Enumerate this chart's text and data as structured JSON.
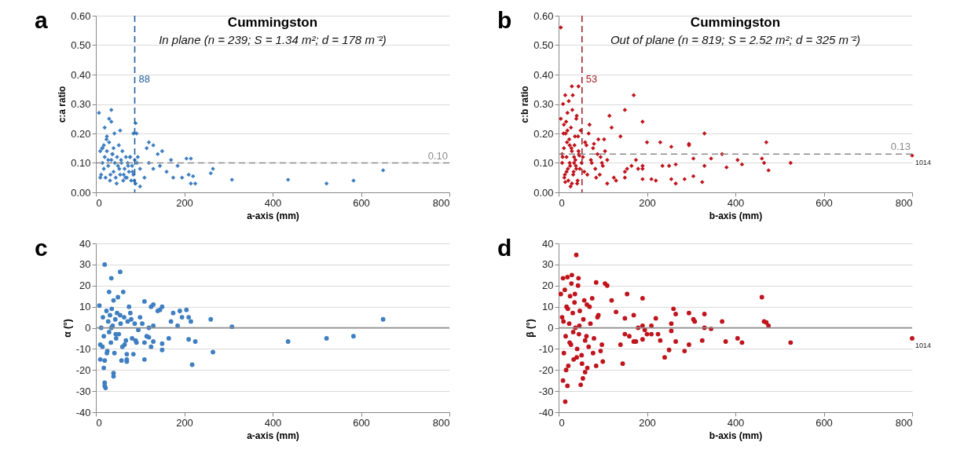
{
  "chart_data": [
    {
      "type": "scatter",
      "title": "Cummingston",
      "subtitle": "In plane (n = 239; S = 1.34 m²; d = 178 m⁻²)",
      "xlabel": "a-axis (mm)",
      "ylabel": "c:a ratio",
      "marker": "diamond",
      "grid": "y",
      "xlim": [
        0,
        800
      ],
      "xticks": [
        0,
        200,
        400,
        600,
        800
      ],
      "ylim": [
        0,
        0.6
      ],
      "yticks": [
        {
          "value": 0,
          "label": "0.00"
        },
        {
          "value": 0.1,
          "label": "0.10"
        },
        {
          "value": 0.2,
          "label": "0.20"
        },
        {
          "value": 0.3,
          "label": "0.30"
        },
        {
          "value": 0.4,
          "label": "0.40"
        },
        {
          "value": 0.5,
          "label": "0.50"
        },
        {
          "value": 0.6,
          "label": "0.60"
        }
      ],
      "ref_lines": [
        {
          "axis": "x",
          "value": 88,
          "label": "88",
          "color": "#1f5f9c",
          "line_style": "dashed"
        },
        {
          "axis": "y",
          "value": 0.1,
          "label": "0.10",
          "color": "#8c8c8c",
          "line_style": "dashed"
        }
      ],
      "annotations": [
        "a"
      ],
      "series": [
        {
          "color": "#3f7fc1",
          "x": [
            7,
            35,
            30,
            35,
            20,
            55,
            90,
            85,
            92,
            95,
            25,
            15,
            40,
            120,
            130,
            115,
            150,
            140,
            170,
            205,
            215,
            120,
            145,
            185,
            100,
            160,
            110,
            130,
            175,
            195,
            210,
            215,
            225,
            220,
            100,
            260,
            265,
            308,
            435,
            522,
            583,
            650,
            10,
            12,
            15,
            18,
            20,
            22,
            25,
            28,
            30,
            32,
            35,
            38,
            40,
            42,
            45,
            48,
            50,
            52,
            55,
            58,
            60,
            62,
            65,
            68,
            70,
            72,
            75,
            78,
            80,
            82,
            85,
            88,
            90,
            10,
            14,
            18,
            24,
            28,
            33,
            37,
            43,
            47,
            53,
            57,
            63,
            67,
            73,
            77,
            83,
            87,
            93
          ],
          "values": [
            0.27,
            0.28,
            0.25,
            0.24,
            0.22,
            0.21,
            0.235,
            0.2,
            0.2,
            0.12,
            0.19,
            0.15,
            0.15,
            0.17,
            0.16,
            0.15,
            0.14,
            0.13,
            0.11,
            0.115,
            0.115,
            0.1,
            0.09,
            0.09,
            0.08,
            0.07,
            0.05,
            0.08,
            0.05,
            0.05,
            0.06,
            0.03,
            0.03,
            0.055,
            0.02,
            0.065,
            0.08,
            0.043,
            0.043,
            0.03,
            0.04,
            0.075,
            0.14,
            0.06,
            0.1,
            0.16,
            0.12,
            0.05,
            0.14,
            0.09,
            0.17,
            0.04,
            0.11,
            0.13,
            0.07,
            0.2,
            0.05,
            0.12,
            0.09,
            0.16,
            0.06,
            0.1,
            0.14,
            0.04,
            0.08,
            0.12,
            0.05,
            0.1,
            0.07,
            0.12,
            0.04,
            0.09,
            0.06,
            0.11,
            0.03,
            0.05,
            0.15,
            0.08,
            0.18,
            0.11,
            0.06,
            0.13,
            0.1,
            0.03,
            0.08,
            0.11,
            0.06,
            0.05,
            0.09,
            0.12,
            0.07,
            0.04,
            0.1
          ]
        }
      ]
    },
    {
      "type": "scatter",
      "title": "Cummingston",
      "subtitle": "Out of plane (n = 819; S = 2.52 m²; d = 325 m⁻²)",
      "xlabel": "b-axis (mm)",
      "ylabel": "c:b ratio",
      "marker": "diamond",
      "grid": "y",
      "xlim": [
        0,
        800
      ],
      "xticks": [
        0,
        200,
        400,
        600,
        800
      ],
      "ylim": [
        0,
        0.6
      ],
      "yticks": [
        {
          "value": 0,
          "label": "0.00"
        },
        {
          "value": 0.1,
          "label": "0.10"
        },
        {
          "value": 0.2,
          "label": "0.20"
        },
        {
          "value": 0.3,
          "label": "0.30"
        },
        {
          "value": 0.4,
          "label": "0.40"
        },
        {
          "value": 0.5,
          "label": "0.50"
        },
        {
          "value": 0.6,
          "label": "0.60"
        }
      ],
      "ref_lines": [
        {
          "axis": "x",
          "value": 53,
          "label": "53",
          "color": "#a3242b",
          "line_style": "dashed"
        },
        {
          "axis": "y",
          "value": 0.13,
          "label": "0.13",
          "color": "#8c8c8c",
          "line_style": "dashed"
        }
      ],
      "annotations": [
        "b",
        {
          "text": "1014",
          "x": 800,
          "y": 0.125
        }
      ],
      "series": [
        {
          "color": "#c0141c",
          "x": [
            5,
            30,
            45,
            15,
            170,
            150,
            190,
            330,
            470,
            200,
            230,
            255,
            295,
            295,
            140,
            115,
            120,
            370,
            345,
            305,
            405,
            415,
            465,
            460,
            475,
            525,
            380,
            330,
            325,
            305,
            285,
            265,
            265,
            255,
            250,
            235,
            220,
            210,
            190,
            190,
            190,
            180,
            175,
            165,
            155,
            150,
            150,
            130,
            125,
            110,
            800,
            5,
            8,
            10,
            12,
            14,
            16,
            18,
            20,
            22,
            24,
            26,
            28,
            30,
            32,
            34,
            36,
            38,
            40,
            42,
            44,
            46,
            48,
            50,
            55,
            60,
            65,
            70,
            75,
            80,
            85,
            90,
            95,
            100,
            105,
            110,
            8,
            11,
            13,
            17,
            19,
            21,
            23,
            25,
            27,
            29,
            31,
            33,
            35,
            37,
            39,
            41,
            43,
            47,
            52,
            58,
            63,
            68,
            73,
            78,
            83,
            88,
            93,
            98,
            103,
            9,
            15,
            20,
            25,
            30,
            35,
            40,
            45,
            12,
            18
          ],
          "values": [
            0.56,
            0.36,
            0.36,
            0.33,
            0.33,
            0.28,
            0.24,
            0.2,
            0.17,
            0.17,
            0.17,
            0.155,
            0.16,
            0.165,
            0.19,
            0.26,
            0.22,
            0.13,
            0.115,
            0.115,
            0.11,
            0.095,
            0.1,
            0.115,
            0.075,
            0.1,
            0.085,
            0.09,
            0.035,
            0.055,
            0.045,
            0.095,
            0.03,
            0.045,
            0.09,
            0.09,
            0.04,
            0.045,
            0.045,
            0.08,
            0.09,
            0.08,
            0.11,
            0.09,
            0.08,
            0.05,
            0.07,
            0.04,
            0.05,
            0.03,
            0.125,
            0.25,
            0.1,
            0.3,
            0.15,
            0.06,
            0.2,
            0.12,
            0.27,
            0.04,
            0.18,
            0.09,
            0.22,
            0.14,
            0.33,
            0.07,
            0.16,
            0.11,
            0.25,
            0.03,
            0.19,
            0.13,
            0.08,
            0.21,
            0.12,
            0.17,
            0.06,
            0.23,
            0.1,
            0.165,
            0.05,
            0.18,
            0.12,
            0.09,
            0.14,
            0.11,
            0.13,
            0.2,
            0.05,
            0.24,
            0.17,
            0.08,
            0.31,
            0.1,
            0.02,
            0.15,
            0.28,
            0.06,
            0.12,
            0.19,
            0.09,
            0.26,
            0.04,
            0.125,
            0.1,
            0.07,
            0.16,
            0.2,
            0.11,
            0.15,
            0.08,
            0.13,
            0.06,
            0.1,
            0.18,
            0.12,
            0.035,
            0.21,
            0.16,
            0.03,
            0.1,
            0.08,
            0.14,
            0.23,
            0.07
          ]
        }
      ]
    },
    {
      "type": "scatter",
      "xlabel": "a-axis (mm)",
      "ylabel": "α (°)",
      "marker": "circle",
      "grid": "y",
      "xlim": [
        0,
        800
      ],
      "xticks": [
        0,
        200,
        400,
        600,
        800
      ],
      "ylim": [
        -40,
        40
      ],
      "yticks": [
        -40,
        -30,
        -20,
        -10,
        0,
        10,
        20,
        30,
        40
      ],
      "ref_lines": [
        {
          "axis": "y",
          "value": 0,
          "color": "#8c8c8c",
          "line_style": "solid"
        }
      ],
      "annotations": [
        "c"
      ],
      "series": [
        {
          "color": "#3f7fc1",
          "x": [
            20,
            55,
            35,
            30,
            62,
            50,
            40,
            110,
            8,
            130,
            125,
            150,
            75,
            145,
            190,
            205,
            175,
            195,
            210,
            215,
            260,
            650,
            308,
            185,
            100,
            130,
            120,
            165,
            150,
            150,
            210,
            225,
            265,
            218,
            435,
            522,
            583,
            110,
            110,
            120,
            125,
            130,
            85,
            70,
            70,
            58,
            70,
            40,
            40,
            20,
            20,
            22,
            18,
            20,
            10,
            10,
            15,
            12,
            16,
            18,
            24,
            26,
            28,
            30,
            32,
            34,
            36,
            38,
            42,
            44,
            46,
            48,
            52,
            56,
            60,
            64,
            68,
            72,
            78,
            82,
            88,
            92,
            96,
            25,
            35,
            45,
            55,
            65,
            80,
            90,
            105,
            115,
            140,
            170
          ],
          "values": [
            30,
            26.5,
            23.5,
            17,
            17,
            14.5,
            13,
            12.5,
            10.5,
            11,
            10,
            10,
            10,
            8.5,
            8,
            8.5,
            7,
            5,
            5,
            3,
            4,
            4,
            0.5,
            1,
            5,
            1,
            0,
            -5,
            -7.5,
            -10.5,
            -5.5,
            -6.5,
            -11.5,
            -17.5,
            -6.5,
            -5,
            -4,
            -15,
            -7,
            -4.5,
            -9,
            -6.5,
            -12.5,
            -15,
            -16,
            -15.5,
            -12.5,
            -21.5,
            -23,
            -26,
            -27.5,
            -28.5,
            -19,
            -15.5,
            -15,
            -8,
            -9,
            0,
            5,
            -4,
            8,
            -11,
            3,
            -2,
            6,
            -7,
            9,
            1,
            -12,
            4,
            -5,
            7,
            -3,
            2,
            -9,
            5,
            -6,
            3,
            7,
            -5,
            2,
            -7,
            -1,
            -12,
            0,
            -3,
            6,
            -8,
            4,
            -6,
            2,
            -4,
            8,
            3
          ]
        }
      ]
    },
    {
      "type": "scatter",
      "xlabel": "b-axis (mm)",
      "ylabel": "β (°)",
      "marker": "circle",
      "grid": "y",
      "xlim": [
        0,
        800
      ],
      "xticks": [
        0,
        200,
        400,
        600,
        800
      ],
      "ylim": [
        -40,
        40
      ],
      "yticks": [
        -40,
        -30,
        -20,
        -10,
        0,
        10,
        20,
        30,
        40
      ],
      "ref_lines": [
        {
          "axis": "y",
          "value": 0,
          "color": "#8c8c8c",
          "line_style": "solid"
        }
      ],
      "annotations": [
        "d",
        {
          "text": "1014",
          "x": 800,
          "y": -5
        }
      ],
      "series": [
        {
          "color": "#c0141c",
          "x": [
            40,
            30,
            20,
            10,
            45,
            85,
            105,
            110,
            5,
            155,
            190,
            460,
            120,
            130,
            260,
            265,
            295,
            330,
            170,
            150,
            220,
            305,
            308,
            370,
            465,
            470,
            475,
            255,
            210,
            190,
            195,
            180,
            330,
            345,
            255,
            140,
            145,
            150,
            160,
            170,
            175,
            190,
            200,
            210,
            225,
            230,
            240,
            250,
            265,
            285,
            295,
            325,
            378,
            405,
            415,
            525,
            800,
            15,
            20,
            50,
            10,
            55,
            60,
            65,
            85,
            100,
            8,
            12,
            14,
            16,
            18,
            22,
            24,
            26,
            28,
            32,
            34,
            36,
            38,
            42,
            44,
            46,
            48,
            52,
            56,
            60,
            64,
            68,
            72,
            76,
            80,
            90,
            95,
            11,
            17,
            21,
            25,
            29,
            33,
            37,
            41,
            47,
            53,
            58,
            63,
            70,
            78,
            88,
            98
          ],
          "values": [
            34.5,
            25,
            24,
            23.5,
            23.5,
            21.5,
            21,
            20,
            16,
            16,
            14,
            14.5,
            13,
            7.5,
            9,
            6.5,
            7,
            6.5,
            6,
            4.5,
            4.5,
            4,
            3,
            3,
            3,
            2.5,
            1,
            2,
            1,
            1,
            -1,
            0,
            0,
            -0.5,
            -1.5,
            -8,
            -17,
            -3,
            -4,
            -6.5,
            -6.5,
            -5.5,
            -3,
            -3,
            -3,
            -6,
            -14,
            -10.5,
            -6.5,
            -11,
            -8,
            -6,
            -6.5,
            -5,
            -7,
            -7,
            -5,
            -35,
            -27.5,
            -27,
            -25,
            -24,
            -21,
            -19,
            -18,
            -16,
            5,
            -12,
            18,
            -4,
            10,
            -18,
            2,
            15,
            -8,
            7,
            -15,
            12,
            0,
            -10,
            20,
            -3,
            8,
            -13,
            4,
            -6,
            11,
            -9,
            2,
            14,
            -5,
            6,
            -11,
            3,
            -20,
            9,
            -7,
            21,
            -2,
            16,
            -14,
            1,
            -17,
            13,
            -4,
            10,
            -12,
            5,
            -8
          ]
        }
      ]
    }
  ]
}
